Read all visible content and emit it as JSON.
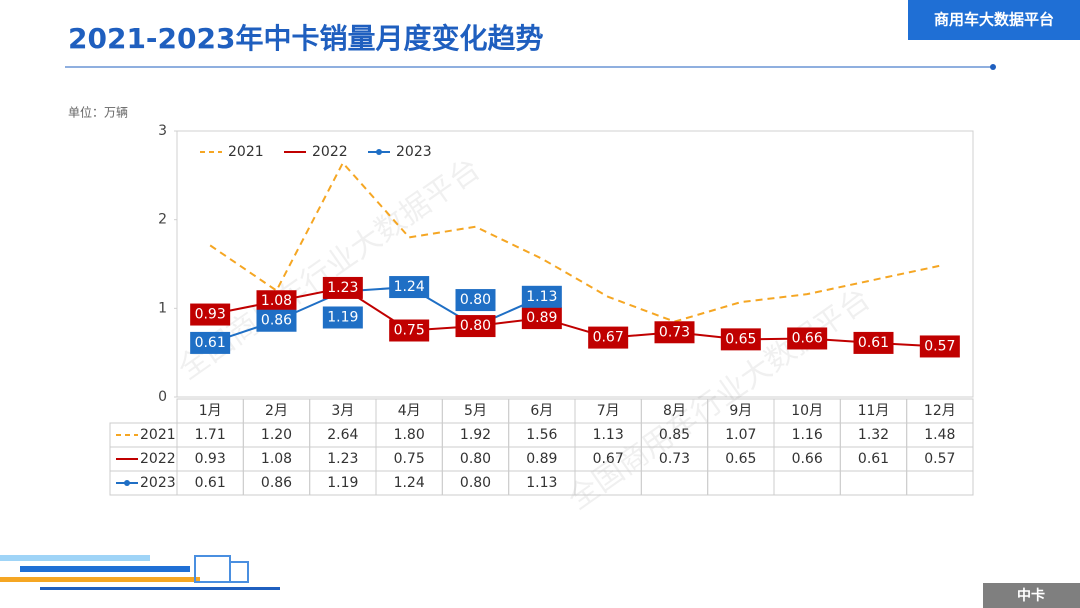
{
  "header": {
    "title": "2021-2023年中卡销量月度变化趋势",
    "badge": "商用车大数据平台",
    "footer_tag": "中卡",
    "watermark": "全国商用车行业大数据平台"
  },
  "chart_data": {
    "type": "line",
    "unit": "单位：万辆",
    "categories": [
      "1月",
      "2月",
      "3月",
      "4月",
      "5月",
      "6月",
      "7月",
      "8月",
      "9月",
      "10月",
      "11月",
      "12月"
    ],
    "ylim": [
      0,
      3
    ],
    "yticks": [
      0,
      1,
      2,
      3
    ],
    "grid": false,
    "legend": "top-left",
    "series": [
      {
        "name": "2021",
        "color": "#f5a623",
        "dashed": true,
        "show_labels": false,
        "values": [
          1.71,
          1.2,
          2.64,
          1.8,
          1.92,
          1.56,
          1.13,
          0.85,
          1.07,
          1.16,
          1.32,
          1.48
        ],
        "value_labels": [
          "1.71",
          "1.20",
          "2.64",
          "1.80",
          "1.92",
          "1.56",
          "1.13",
          "0.85",
          "1.07",
          "1.16",
          "1.32",
          "1.48"
        ]
      },
      {
        "name": "2022",
        "color": "#c00000",
        "dashed": false,
        "show_labels": true,
        "values": [
          0.93,
          1.08,
          1.23,
          0.75,
          0.8,
          0.89,
          0.67,
          0.73,
          0.65,
          0.66,
          0.61,
          0.57
        ],
        "value_labels": [
          "0.93",
          "1.08",
          "1.23",
          "0.75",
          "0.80",
          "0.89",
          "0.67",
          "0.73",
          "0.65",
          "0.66",
          "0.61",
          "0.57"
        ]
      },
      {
        "name": "2023",
        "color": "#1f6fc5",
        "dashed": false,
        "show_labels": true,
        "marker": true,
        "values": [
          0.61,
          0.86,
          1.19,
          1.24,
          0.8,
          1.13,
          null,
          null,
          null,
          null,
          null,
          null
        ],
        "value_labels": [
          "0.61",
          "0.86",
          "1.19",
          "1.24",
          "0.80",
          "1.13",
          null,
          null,
          null,
          null,
          null,
          null
        ]
      }
    ]
  }
}
